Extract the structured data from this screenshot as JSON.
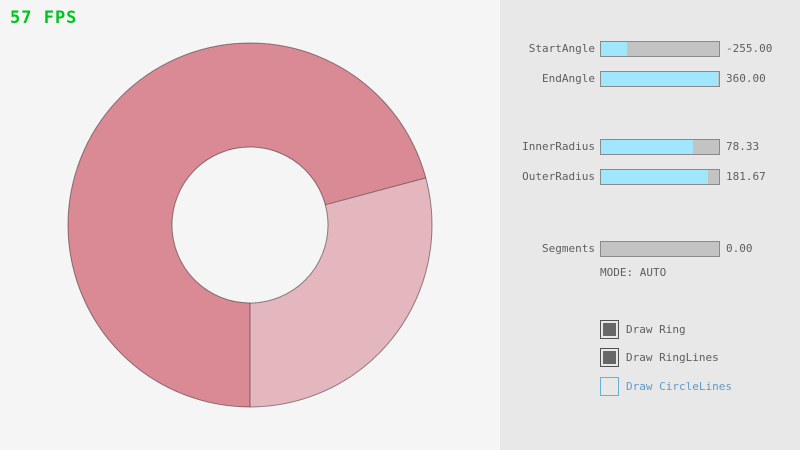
{
  "fps": {
    "text": "57 FPS"
  },
  "colors": {
    "canvas_bg": "#f5f5f5",
    "panel_bg": "#e8e8e8",
    "ring_dark": "#d98a95",
    "ring_light": "#e4b6bd",
    "ring_line": "#000000",
    "slider_fill": "#a0e7fe",
    "slider_track": "#c3c3c3",
    "slider_border": "#8a8a8a",
    "check_fill": "#676767",
    "check_border": "#515151",
    "focus_blue": "#66b1da",
    "focus_text": "#6499c4",
    "label_text": "#5e5e5e",
    "fps_color": "#00c41e"
  },
  "sliders": [
    {
      "id": "start-angle",
      "label": "StartAngle",
      "value": "-255.00",
      "fill_pct": 21.7
    },
    {
      "id": "end-angle",
      "label": "EndAngle",
      "value": "360.00",
      "fill_pct": 99
    },
    {
      "id": "inner-radius",
      "label": "InnerRadius",
      "value": "78.33",
      "fill_pct": 78.3
    },
    {
      "id": "outer-radius",
      "label": "OuterRadius",
      "value": "181.67",
      "fill_pct": 90.8
    },
    {
      "id": "segments",
      "label": "Segments",
      "value": "0.00",
      "fill_pct": 0
    }
  ],
  "mode_text": "MODE: AUTO",
  "checkboxes": [
    {
      "id": "draw-ring",
      "label": "Draw Ring",
      "checked": true,
      "focused": false
    },
    {
      "id": "draw-ringlines",
      "label": "Draw RingLines",
      "checked": true,
      "focused": false
    },
    {
      "id": "draw-circlelines",
      "label": "Draw CircleLines",
      "checked": false,
      "focused": true
    }
  ]
}
